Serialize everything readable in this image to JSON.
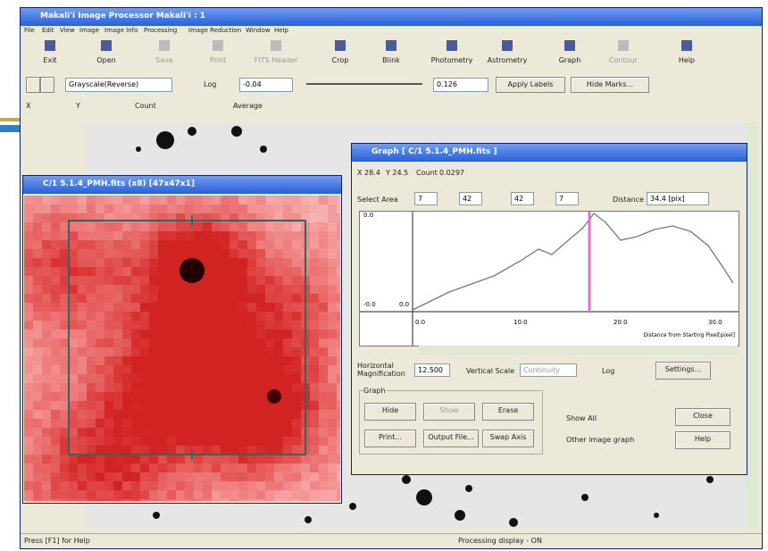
{
  "window": {
    "title": "Makali'i Image Processor Makali'i : 1"
  },
  "menu": [
    "File",
    "Edit",
    "View",
    "Image",
    "Image Info",
    "Processing",
    "Image Reduction",
    "Window",
    "Help"
  ],
  "toolbar": [
    "Exit",
    "Open",
    "Save",
    "Print",
    "FITS Header",
    "Crop",
    "Blink",
    "Photometry",
    "Astrometry",
    "Graph",
    "Contour",
    "Help"
  ],
  "display": {
    "colormap": "Grayscale(Reverse)",
    "log": "Log",
    "min": "-0.04",
    "max": "0.126",
    "apply": "Apply Labels",
    "hide": "Hide Marks..."
  },
  "info": {
    "x": "X",
    "y": "Y",
    "count": "Count",
    "average": "Average"
  },
  "image_window": {
    "title": "C/1 5.1.4_PMH.fits (x8) [47x47x1]"
  },
  "graph_window": {
    "title": "Graph [ C/1 5.1.4_PMH.fits ]",
    "readout": [
      "X 28.4",
      "Y 24.5",
      "Count",
      "0.0297"
    ],
    "select_area": "Select Area",
    "area": [
      "7",
      "42",
      "42",
      "7"
    ],
    "distance": "Distance",
    "distance_value": "34.4 [pix]",
    "y_labels": [
      "0.0",
      "-0.0",
      "0.0"
    ],
    "x_labels": [
      "0.0",
      "10.0",
      "20.0",
      "30.0"
    ],
    "x_title": "Distance from Starting Pixel[pixel]",
    "horizontal": "Horizontal Magnification",
    "magnification": "12.500",
    "vertical": "Vertical Scale",
    "scale": "Continuity",
    "log": "Log",
    "settings": "Settings...",
    "graph_group": "Graph",
    "buttons": [
      "Hide",
      "Show",
      "Erase",
      "Print...",
      "Output File...",
      "Swap Axis",
      "Close",
      "Help"
    ],
    "checks": [
      "Show All",
      "Other image graph"
    ]
  },
  "status": [
    "Press [F1] for Help",
    "Processing display - ON"
  ]
}
